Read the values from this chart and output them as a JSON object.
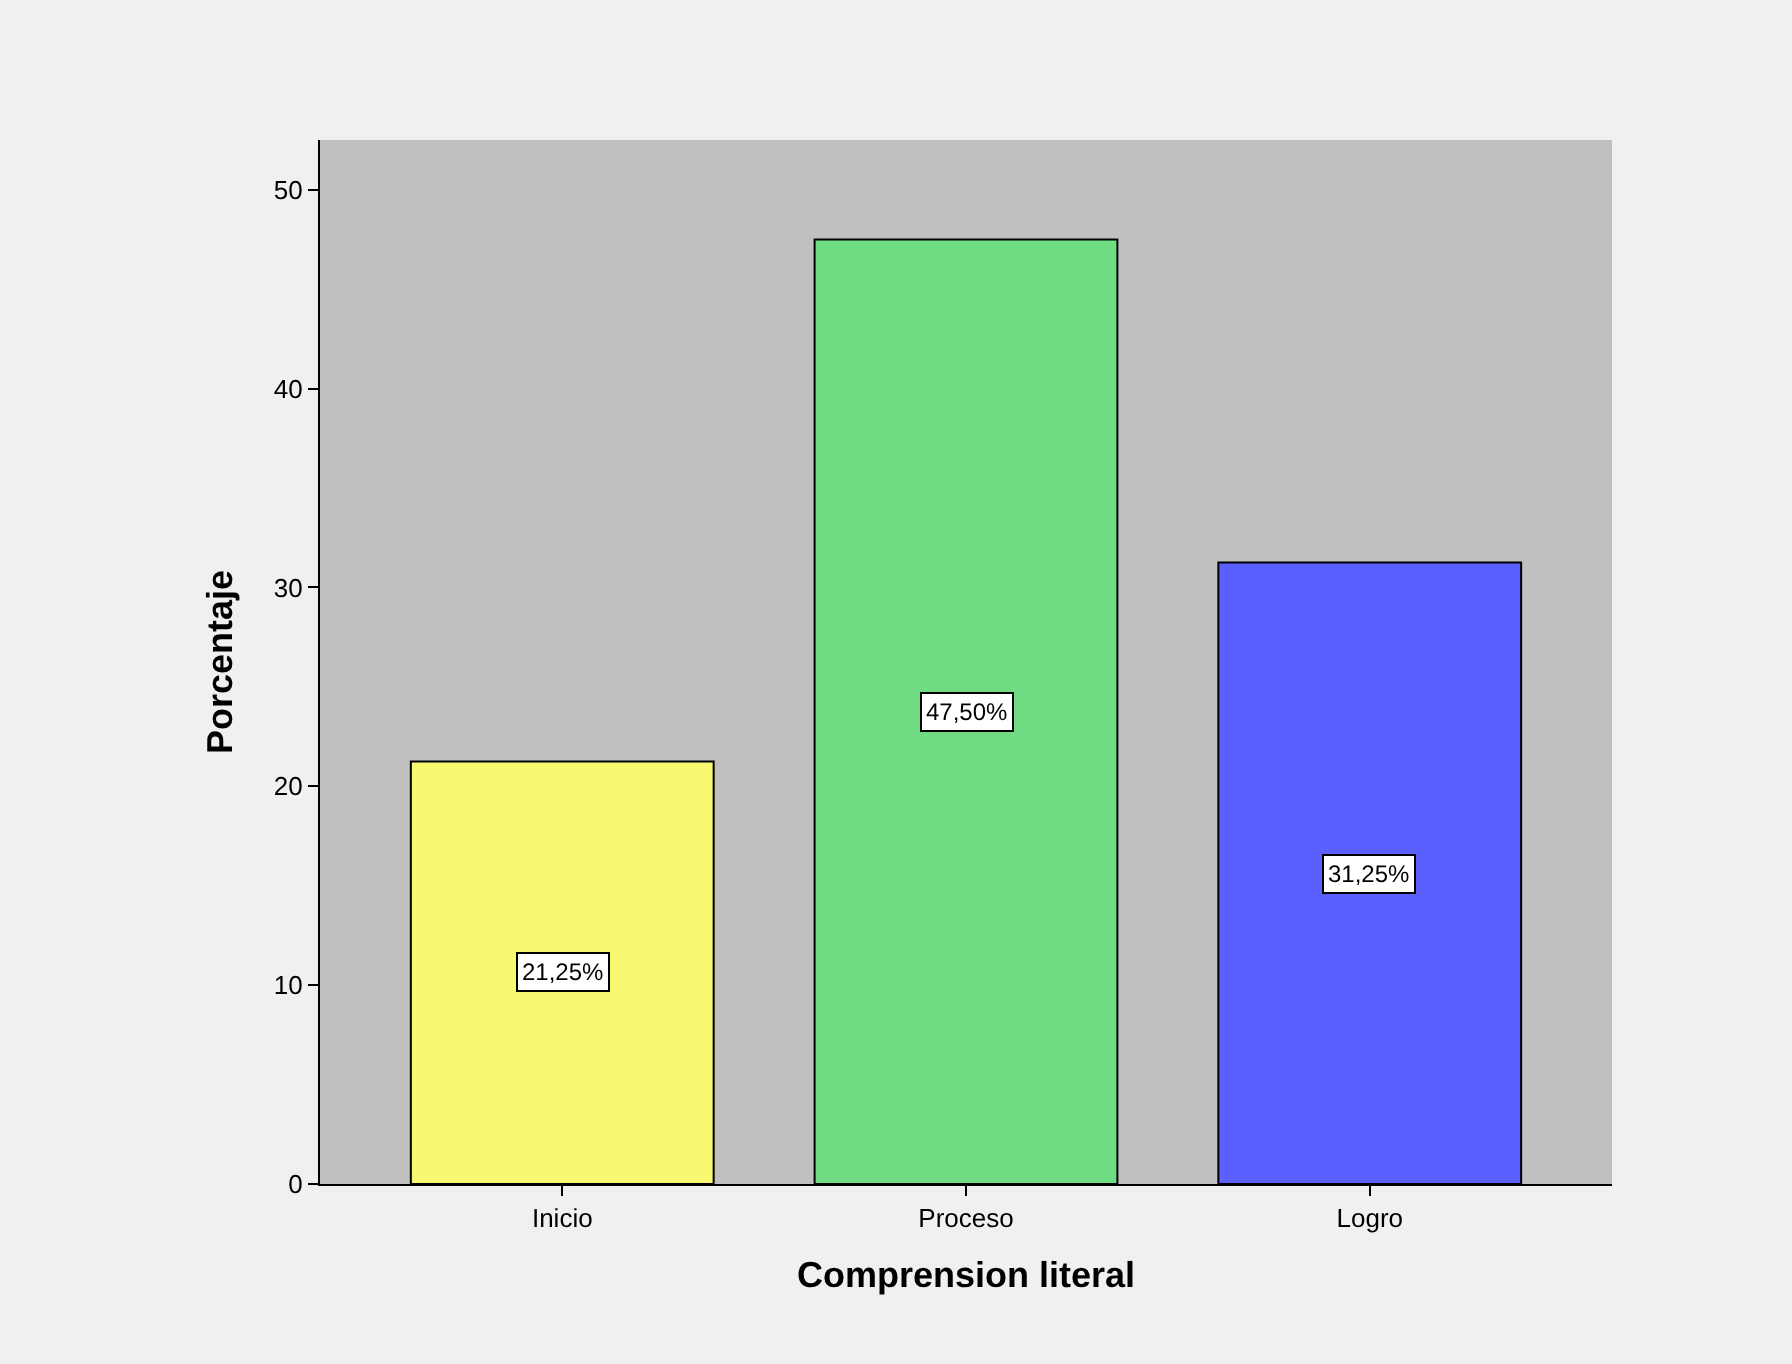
{
  "chart_data": {
    "type": "bar",
    "xlabel": "Comprension literal",
    "ylabel": "Porcentaje",
    "categories": [
      "Inicio",
      "Proceso",
      "Logro"
    ],
    "values": [
      21.25,
      47.5,
      31.25
    ],
    "colors": [
      "#f9f871",
      "#6fdc84",
      "#5b5ffe"
    ],
    "value_labels": [
      "21,25%",
      "47,50%",
      "31,25%"
    ],
    "ylim": [
      0,
      52.5
    ],
    "yticks": [
      0,
      10,
      20,
      30,
      40,
      50
    ],
    "grid": false
  }
}
